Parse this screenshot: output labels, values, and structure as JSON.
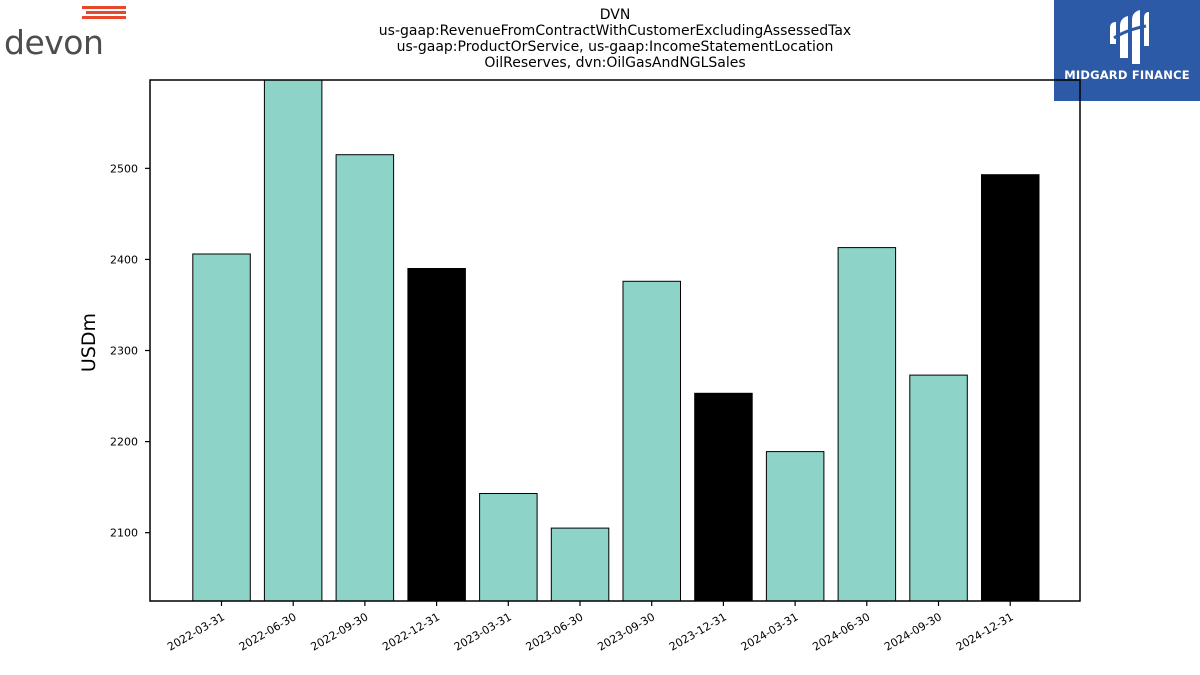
{
  "title_lines": [
    "DVN",
    "us-gaap:RevenueFromContractWithCustomerExcludingAssessedTax",
    "us-gaap:ProductOrService, us-gaap:IncomeStatementLocation",
    "OilReserves, dvn:OilGasAndNGLSales"
  ],
  "logos": {
    "left": {
      "text": "devon",
      "accent_color": "#e8472a",
      "text_color": "#4d4d4f"
    },
    "right": {
      "text": "MIDGARD FINANCE",
      "background": "#2c5aa6",
      "icon": "midgard-mark-icon"
    }
  },
  "chart_data": {
    "type": "bar",
    "categories": [
      "2022-03-31",
      "2022-06-30",
      "2022-09-30",
      "2022-12-31",
      "2023-03-31",
      "2023-06-30",
      "2023-09-30",
      "2023-12-31",
      "2024-03-31",
      "2024-06-30",
      "2024-09-30",
      "2024-12-31"
    ],
    "values": [
      2406,
      2600,
      2515,
      2390,
      2143,
      2105,
      2376,
      2253,
      2189,
      2413,
      2273,
      2493
    ],
    "colors": [
      "#8dd3c7",
      "#8dd3c7",
      "#8dd3c7",
      "#000000",
      "#8dd3c7",
      "#8dd3c7",
      "#8dd3c7",
      "#000000",
      "#8dd3c7",
      "#8dd3c7",
      "#8dd3c7",
      "#000000"
    ],
    "ylabel": "USDm",
    "xlabel": "",
    "ylim": [
      2025,
      2597
    ],
    "yticks": [
      2100,
      2200,
      2300,
      2400,
      2500
    ],
    "grid": false
  }
}
